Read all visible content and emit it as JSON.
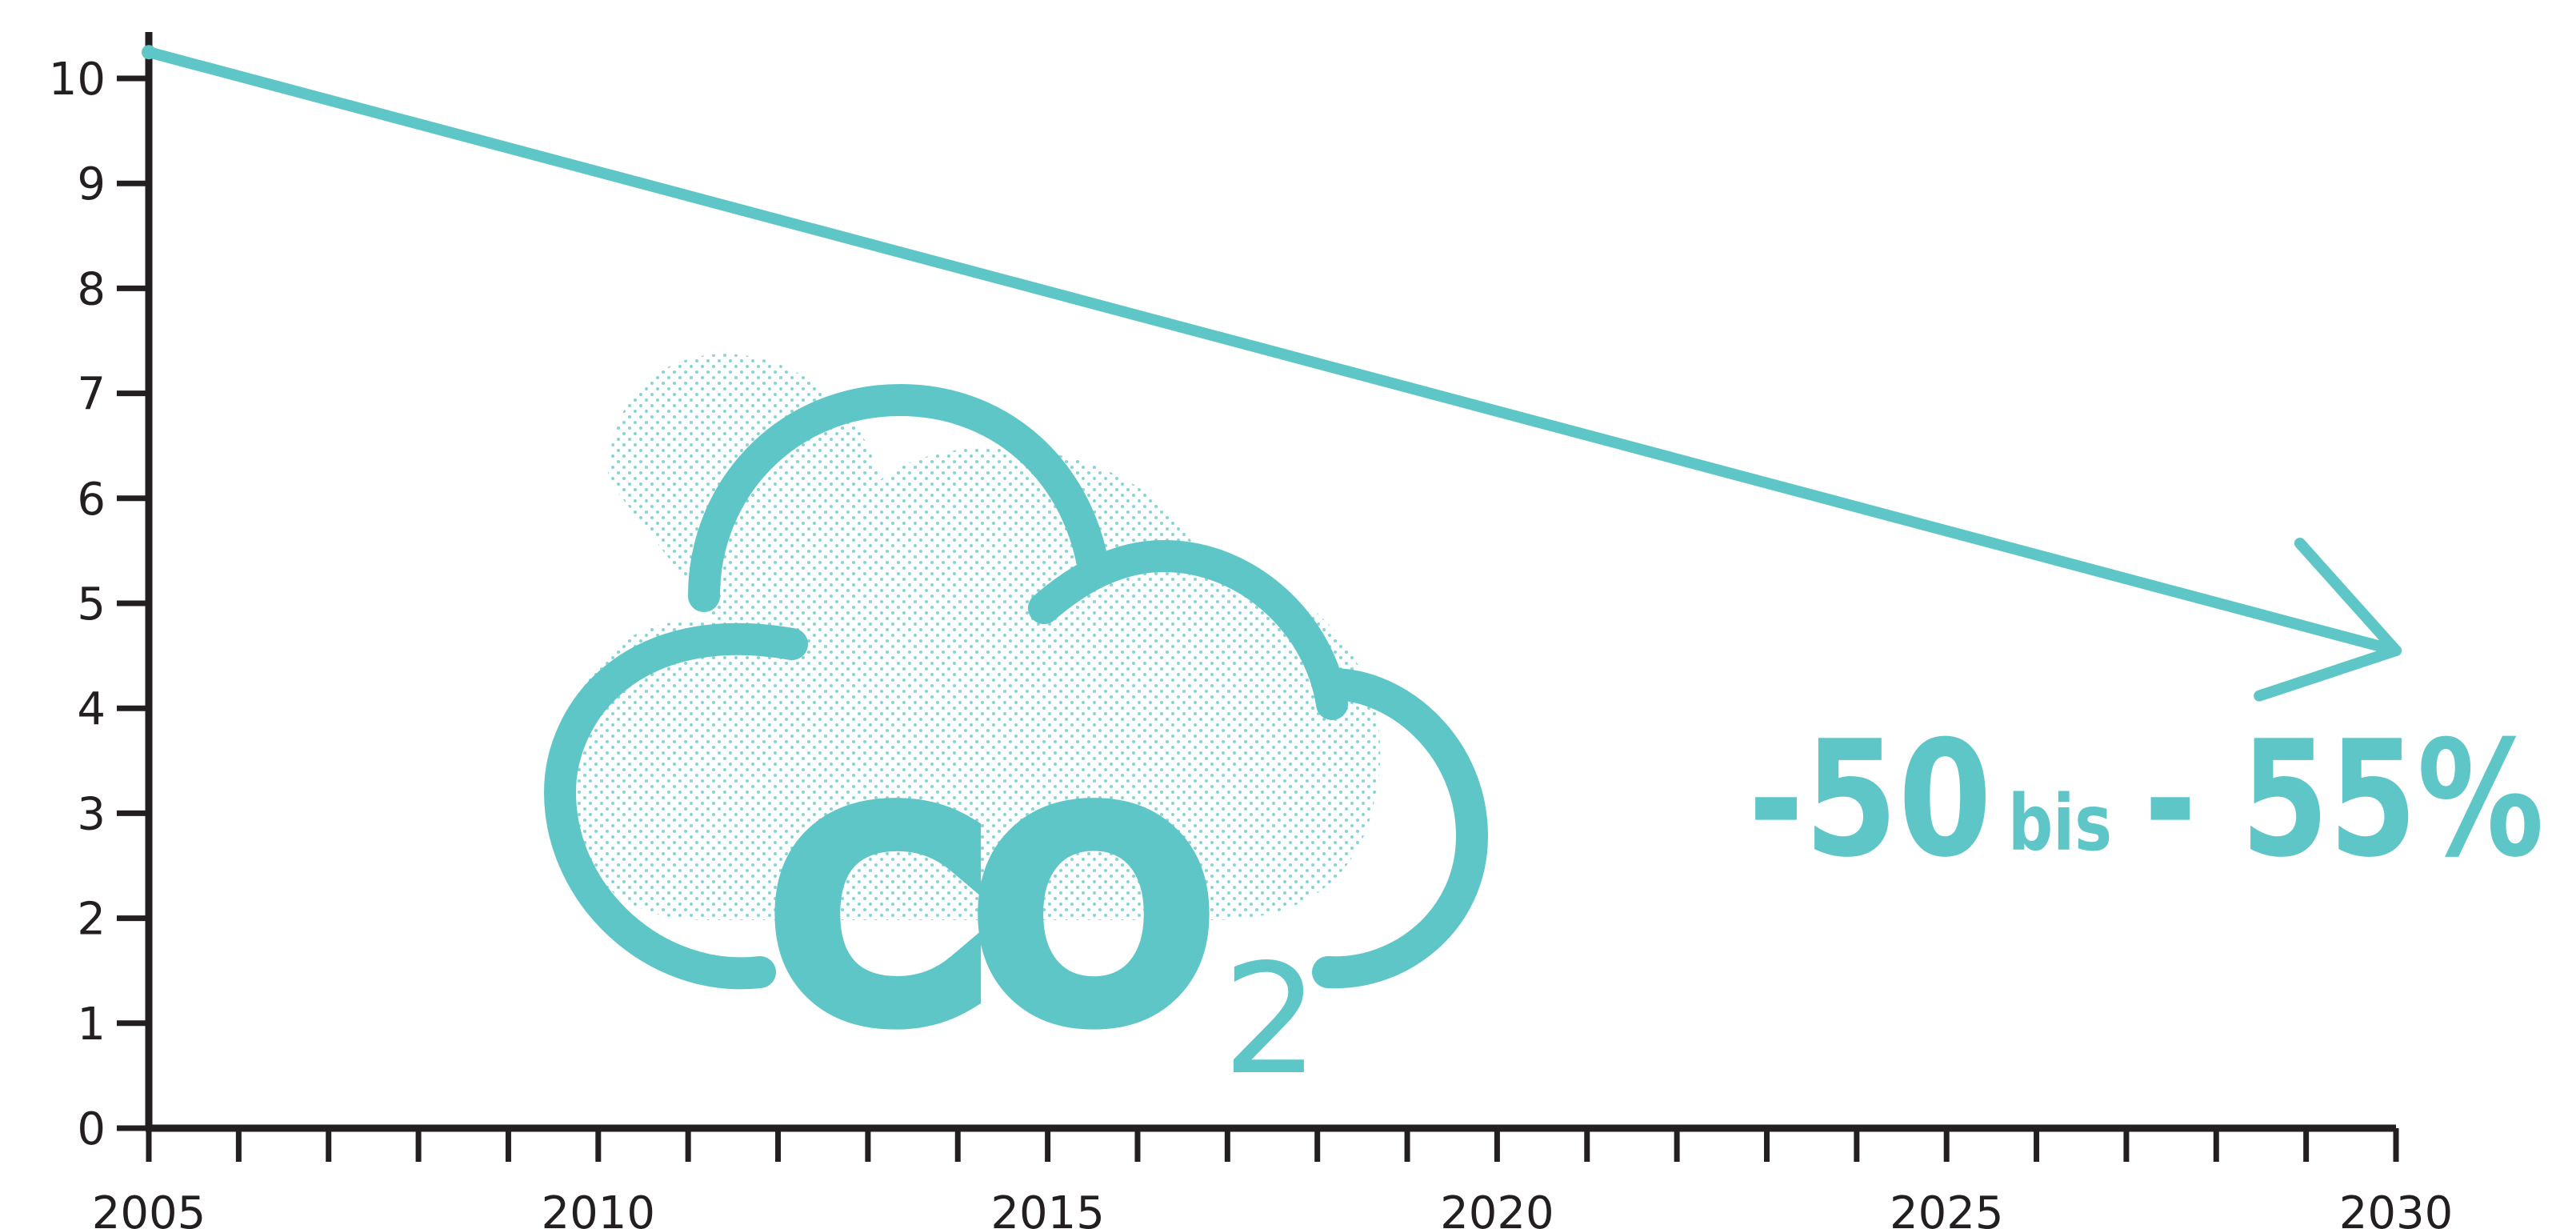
{
  "chart_data": {
    "type": "line",
    "title": "",
    "xlabel": "",
    "ylabel": "",
    "xlim": [
      2005,
      2030
    ],
    "ylim": [
      0,
      10
    ],
    "x_ticks_minor": [
      2005,
      2006,
      2007,
      2008,
      2009,
      2010,
      2011,
      2012,
      2013,
      2014,
      2015,
      2016,
      2017,
      2018,
      2019,
      2020,
      2021,
      2022,
      2023,
      2024,
      2025,
      2026,
      2027,
      2028,
      2029,
      2030
    ],
    "x_tick_labels": [
      "2005",
      "2010",
      "2015",
      "2020",
      "2025",
      "2030"
    ],
    "y_tick_labels": [
      "0",
      "1",
      "2",
      "3",
      "4",
      "5",
      "6",
      "7",
      "8",
      "9",
      "10"
    ],
    "series": [
      {
        "x": [
          2005,
          2030
        ],
        "y": [
          10.25,
          4.55
        ],
        "style": "arrow"
      }
    ],
    "grid": false,
    "annotations": [
      {
        "parts": [
          "-50",
          "bis",
          "- 55%"
        ]
      }
    ],
    "illustration": {
      "icon": "co2-cloud-icon",
      "text_main": "CO",
      "text_sub": "2"
    },
    "colors": {
      "accent": "#5fc6c8",
      "axis": "#231f20"
    }
  }
}
